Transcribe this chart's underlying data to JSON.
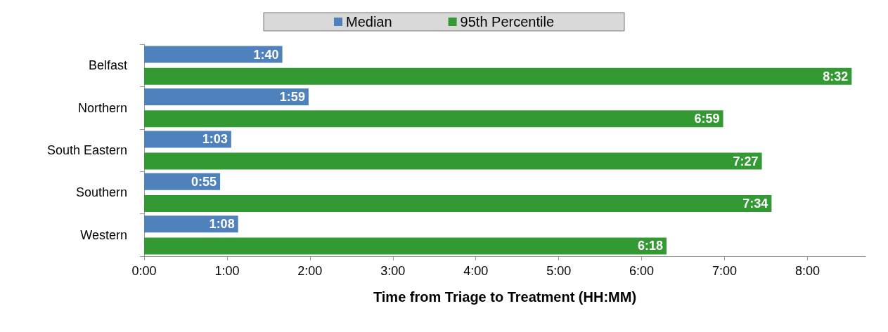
{
  "chart_data": {
    "type": "bar",
    "orientation": "horizontal",
    "xlabel": "Time from Triage to Treatment (HH:MM)",
    "categories": [
      "Belfast",
      "Northern",
      "South Eastern",
      "Southern",
      "Western"
    ],
    "series": [
      {
        "name": "Median",
        "color": "#4f81bd",
        "values": [
          1.6667,
          1.9833,
          1.05,
          0.9167,
          1.1333
        ],
        "value_labels": [
          "1:40",
          "1:59",
          "1:03",
          "0:55",
          "1:08"
        ]
      },
      {
        "name": "95th Percentile",
        "color": "#339933",
        "values": [
          8.5333,
          6.9833,
          7.45,
          7.5667,
          6.3
        ],
        "value_labels": [
          "8:32",
          "6:59",
          "7:27",
          "7:34",
          "6:18"
        ]
      }
    ],
    "xlim": [
      0,
      8.7
    ],
    "xticks": [
      {
        "value": 0,
        "label": "0:00"
      },
      {
        "value": 1,
        "label": "1:00"
      },
      {
        "value": 2,
        "label": "2:00"
      },
      {
        "value": 3,
        "label": "3:00"
      },
      {
        "value": 4,
        "label": "4:00"
      },
      {
        "value": 5,
        "label": "5:00"
      },
      {
        "value": 6,
        "label": "6:00"
      },
      {
        "value": 7,
        "label": "7:00"
      },
      {
        "value": 8,
        "label": "8:00"
      }
    ],
    "grid": false,
    "legend": "top"
  }
}
